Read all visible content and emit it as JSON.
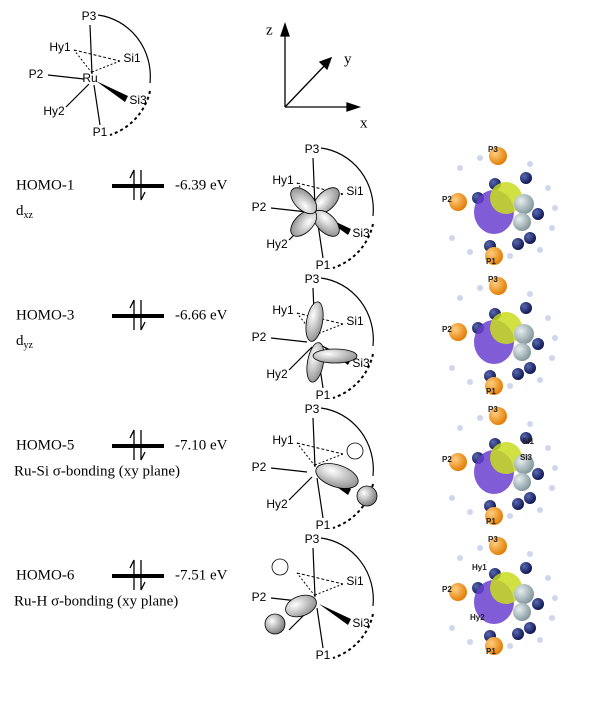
{
  "structure": {
    "atoms": {
      "top": "P3",
      "upper_left": "Hy1",
      "upper_right": "Si1",
      "left": "P2",
      "center": "Ru",
      "lower_left": "Hy2",
      "lower_right": "Si3",
      "bottom": "P1"
    }
  },
  "axes": {
    "z": "z",
    "y": "y",
    "x": "x"
  },
  "orbitals": [
    {
      "name": "HOMO-1",
      "energy": "-6.39 eV",
      "symmetry": {
        "base": "d",
        "sub": "xz"
      },
      "atoms": {
        "top": "P3",
        "upper_left": "Hy1",
        "upper_right": "Si1",
        "left": "P2",
        "lower_left": "Hy2",
        "lower_right": "Si3",
        "bottom": "P1"
      },
      "render_atoms": {
        "top": "P3",
        "left": "P2",
        "bottom": "P1"
      }
    },
    {
      "name": "HOMO-3",
      "energy": "-6.66 eV",
      "symmetry": {
        "base": "d",
        "sub": "yz"
      },
      "atoms": {
        "top": "P3",
        "upper_left": "Hy1",
        "upper_right": "Si1",
        "left": "P2",
        "lower_left": "Hy2",
        "lower_right": "Si3",
        "bottom": "P1"
      },
      "render_atoms": {
        "top": "P3",
        "left": "P2",
        "bottom": "P1"
      }
    },
    {
      "name": "HOMO-5",
      "energy": "-7.10 eV",
      "description": "Ru-Si σ-bonding (xy plane)",
      "atoms": {
        "top": "P3",
        "upper_left": "Hy1",
        "left": "P2",
        "lower_left": "Hy2",
        "bottom": "P1"
      },
      "render_atoms": {
        "top": "P3",
        "upper_right": "Si1",
        "lower_right": "Si3",
        "left": "P2",
        "bottom": "P1"
      }
    },
    {
      "name": "HOMO-6",
      "energy": "-7.51 eV",
      "description": "Ru-H σ-bonding (xy plane)",
      "atoms": {
        "top": "P3",
        "upper_right": "Si1",
        "left": "P2",
        "lower_right": "Si3",
        "bottom": "P1"
      },
      "render_atoms": {
        "top": "P3",
        "upper_left": "Hy1",
        "lower_left": "Hy2",
        "left": "P2",
        "bottom": "P1"
      }
    }
  ]
}
